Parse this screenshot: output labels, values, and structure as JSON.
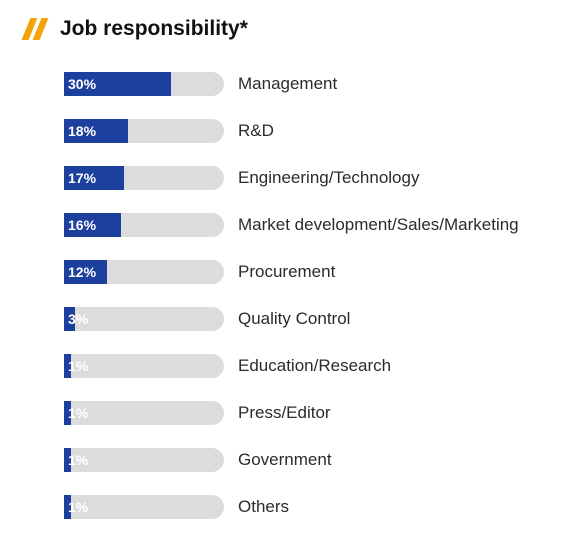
{
  "chart_data": {
    "type": "bar",
    "title": "Job responsibility*",
    "categories": [
      "Management",
      "R&D",
      "Engineering/Technology",
      "Market development/Sales/Marketing",
      "Procurement",
      "Quality Control",
      "Education/Research",
      "Press/Editor",
      "Government",
      "Others"
    ],
    "values": [
      30,
      18,
      17,
      16,
      12,
      3,
      1,
      1,
      1,
      1
    ],
    "value_labels": [
      "30%",
      "18%",
      "17%",
      "16%",
      "12%",
      "3%",
      "1%",
      "1%",
      "1%",
      "1%"
    ],
    "xlim": [
      0,
      100
    ],
    "orientation": "horizontal",
    "grid": false,
    "legend": "none"
  },
  "colors": {
    "bar": "#1d3f9e",
    "track": "#dcdcdc",
    "accent": "#f2a40a"
  }
}
